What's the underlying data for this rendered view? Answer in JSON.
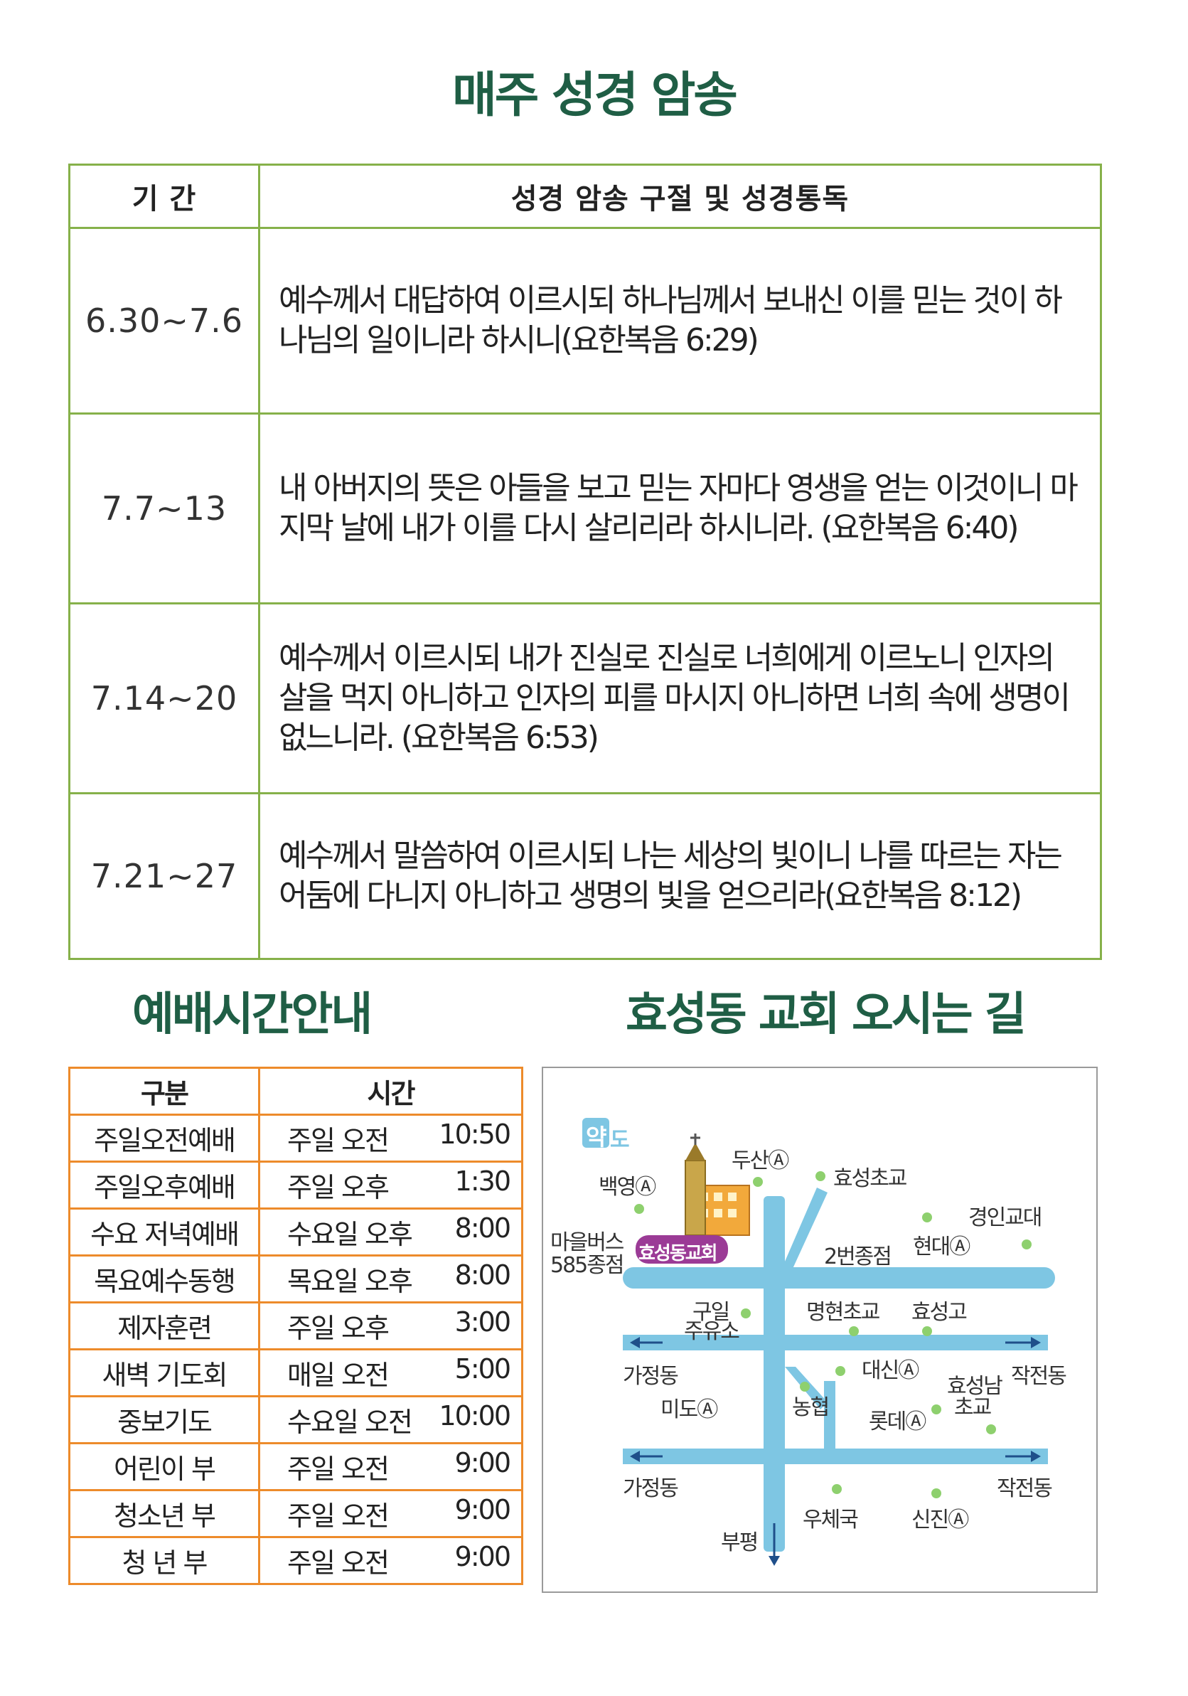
{
  "titles": {
    "main": "매주 성경 암송",
    "worship": "예배시간안내",
    "directions": "효성동 교회 오시는 길"
  },
  "verse_table": {
    "headers": [
      "기 간",
      "성경 암송 구절  및  성경통독"
    ],
    "rows": [
      {
        "period": "6.30~7.6",
        "verse": "예수께서 대답하여 이르시되 하나님께서 보내신 이를 믿는 것이 하나님의 일이니라 하시니(요한복음 6:29)"
      },
      {
        "period": "7.7~13",
        "verse": "내 아버지의 뜻은 아들을 보고 믿는 자마다 영생을 얻는 이것이니 마지막 날에 내가 이를 다시 살리리라 하시니라. (요한복음 6:40)"
      },
      {
        "period": "7.14~20",
        "verse": "예수께서 이르시되 내가 진실로 진실로 너희에게 이르노니 인자의 살을 먹지 아니하고 인자의 피를 마시지 아니하면 너희 속에 생명이 없느니라. (요한복음 6:53)"
      },
      {
        "period": "7.21~27",
        "verse": "예수께서 말씀하여 이르시되 나는 세상의 빛이니 나를 따르는 자는 어둠에 다니지 아니하고 생명의 빛을 얻으리라(요한복음 8:12)"
      }
    ]
  },
  "schedule_table": {
    "headers": [
      "구분",
      "시간"
    ],
    "rows": [
      {
        "name": "주일오전예배",
        "day": "주일 오전",
        "time": "10:50"
      },
      {
        "name": "주일오후예배",
        "day": "주일 오후",
        "time": "1:30"
      },
      {
        "name": "수요 저녁예배",
        "day": "수요일 오후",
        "time": "8:00"
      },
      {
        "name": "목요예수동행",
        "day": "목요일 오후",
        "time": "8:00"
      },
      {
        "name": "제자훈련",
        "day": "주일 오후",
        "time": "3:00"
      },
      {
        "name": "새벽 기도회",
        "day": "매일 오전",
        "time": "5:00"
      },
      {
        "name": "중보기도",
        "day": "수요일 오전",
        "time": "10:00"
      },
      {
        "name": "어린이 부",
        "day": "주일 오전",
        "time": "9:00"
      },
      {
        "name": "청소년 부",
        "day": "주일 오전",
        "time": "9:00"
      },
      {
        "name": "청 년 부",
        "day": "주일 오전",
        "time": "9:00"
      }
    ]
  },
  "map": {
    "badge_a": "약",
    "badge_b": "도",
    "church_label": "효성동교회",
    "labels": {
      "doosan": "두산Ⓐ",
      "hyoseong_elem": "효성초교",
      "baekyoung": "백영Ⓐ",
      "gyeongin": "경인교대",
      "bus_a": "마을버스",
      "bus_b": "585종점",
      "hyundai": "현대Ⓐ",
      "bus2": "2번종점",
      "gas_a": "구일",
      "gas_b": "주유소",
      "myeonghyeon": "명현초교",
      "hyoseong_high": "효성고",
      "gajeong1": "가정동",
      "daesin": "대신Ⓐ",
      "hyoseongnam_a": "효성남",
      "hyoseongnam_b": "초교",
      "jakjeon1": "작전동",
      "mido": "미도Ⓐ",
      "nonghyup": "농협",
      "lotte": "롯데Ⓐ",
      "gajeong2": "가정동",
      "jakjeon2": "작전동",
      "post": "우체국",
      "sinjin": "신진Ⓐ",
      "bupyeong": "부평"
    },
    "colors": {
      "road": "#7ec6e3",
      "dot": "#8ed06e",
      "church_badge": "#9b3b96"
    }
  }
}
